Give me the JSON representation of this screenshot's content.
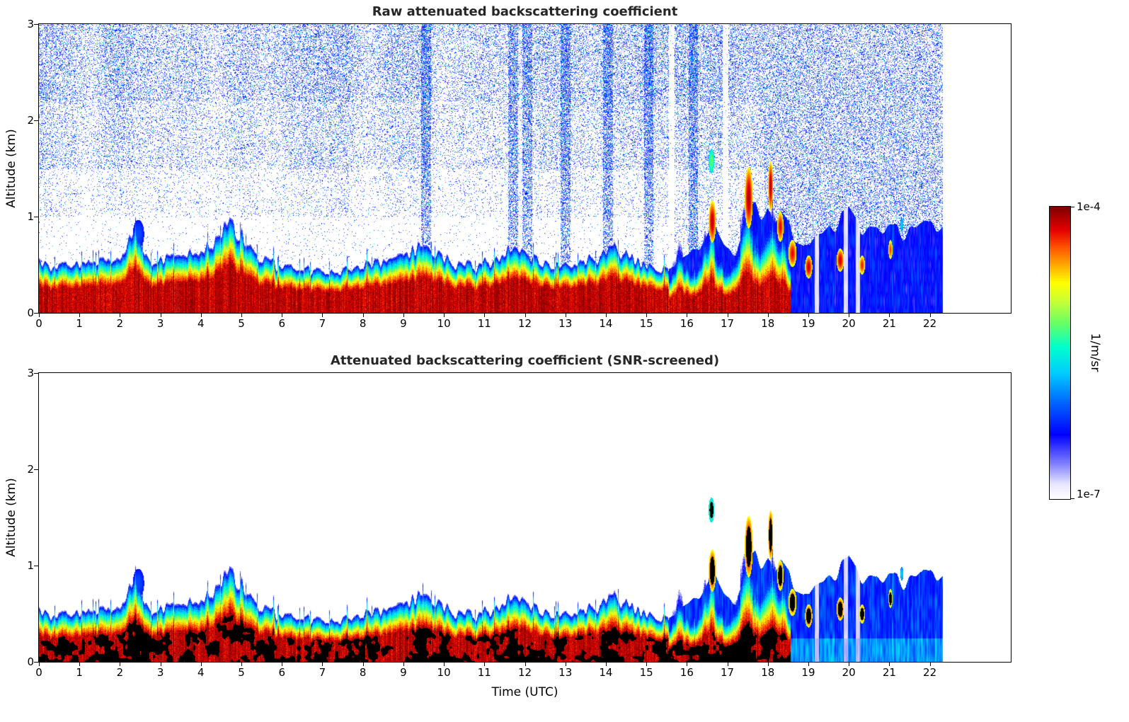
{
  "figure": {
    "background": "#ffffff",
    "colorbar": {
      "max_label": "1e-4",
      "min_label": "1e-7",
      "units_label": "1/m/sr",
      "scale": "log",
      "stops": [
        [
          0.0,
          "#ffffff"
        ],
        [
          0.05,
          "#e8e6ff"
        ],
        [
          0.12,
          "#7f7fff"
        ],
        [
          0.22,
          "#0000ff"
        ],
        [
          0.33,
          "#0066ff"
        ],
        [
          0.43,
          "#00ccff"
        ],
        [
          0.52,
          "#00ffcc"
        ],
        [
          0.6,
          "#66ff66"
        ],
        [
          0.68,
          "#ccff33"
        ],
        [
          0.74,
          "#ffff00"
        ],
        [
          0.8,
          "#ffaa00"
        ],
        [
          0.86,
          "#ff5500"
        ],
        [
          0.92,
          "#e60000"
        ],
        [
          1.0,
          "#800000"
        ]
      ]
    }
  },
  "chart_data": [
    {
      "type": "heatmap",
      "panel": "raw",
      "title": "Raw attenuated backscattering coefficient",
      "xlabel": "",
      "ylabel": "Altitude (km)",
      "xlim": [
        0,
        24
      ],
      "ylim": [
        0,
        3
      ],
      "xticks": [
        0,
        1,
        2,
        3,
        4,
        5,
        6,
        7,
        8,
        9,
        10,
        11,
        12,
        13,
        14,
        15,
        16,
        17,
        18,
        19,
        20,
        21,
        22
      ],
      "yticks": [
        0,
        1,
        2,
        3
      ],
      "time_extent_utc": [
        0,
        22.3
      ],
      "value_scale": {
        "min": 1e-07,
        "max": 0.0001,
        "units": "1/m/sr",
        "scale": "log"
      },
      "screened": false,
      "noise_speckle": true,
      "boundary_layer_top_km": {
        "t": [
          0.0,
          0.6,
          1.2,
          1.8,
          2.1,
          2.25,
          2.4,
          2.6,
          2.9,
          3.3,
          3.8,
          4.2,
          4.5,
          4.7,
          4.85,
          5.0,
          5.15,
          5.35,
          5.7,
          6.2,
          6.8,
          7.3,
          7.8,
          8.3,
          8.8,
          9.1,
          9.35,
          9.6,
          9.9,
          10.3,
          10.8,
          11.2,
          11.5,
          11.75,
          12.0,
          12.4,
          12.9,
          13.4,
          13.9,
          14.15,
          14.4,
          14.8,
          15.1,
          15.4,
          15.6,
          15.8,
          16.05,
          16.25,
          16.45,
          16.6,
          16.75,
          16.95,
          17.15,
          17.35,
          17.5,
          17.65,
          17.8,
          17.95,
          18.1,
          18.25,
          18.4,
          18.55
        ],
        "h": [
          0.52,
          0.5,
          0.52,
          0.55,
          0.62,
          0.78,
          0.88,
          0.6,
          0.55,
          0.58,
          0.62,
          0.7,
          0.82,
          0.92,
          0.88,
          0.82,
          0.72,
          0.6,
          0.52,
          0.48,
          0.45,
          0.44,
          0.48,
          0.52,
          0.54,
          0.6,
          0.68,
          0.66,
          0.58,
          0.52,
          0.5,
          0.55,
          0.62,
          0.7,
          0.62,
          0.54,
          0.5,
          0.52,
          0.62,
          0.7,
          0.62,
          0.54,
          0.5,
          0.46,
          0.42,
          0.7,
          0.5,
          0.55,
          0.8,
          1.0,
          0.65,
          0.55,
          0.6,
          0.9,
          1.3,
          0.9,
          0.7,
          0.9,
          1.15,
          0.8,
          0.9,
          0.6
        ]
      },
      "blue_field_top_km": {
        "t": [
          15.55,
          15.8,
          16.0,
          16.3,
          16.6,
          16.9,
          17.2,
          17.5,
          17.8,
          18.0,
          18.3,
          18.6,
          19.0,
          19.3,
          19.6,
          20.0,
          20.3,
          20.7,
          21.0,
          21.4,
          21.8,
          22.1,
          22.3
        ],
        "h": [
          0.45,
          0.55,
          0.6,
          0.65,
          0.9,
          0.7,
          0.65,
          1.0,
          1.05,
          1.1,
          0.95,
          0.8,
          0.75,
          0.85,
          0.9,
          1.0,
          0.8,
          0.85,
          0.9,
          0.8,
          0.9,
          0.95,
          0.9
        ]
      },
      "features": {
        "clouds": [
          [
            2.45,
            0.82,
            0.14,
            0.15,
            0.3,
            0
          ],
          [
            16.6,
            1.58,
            0.07,
            0.13,
            0.6,
            1
          ],
          [
            16.62,
            0.95,
            0.09,
            0.22,
            0.95,
            1
          ],
          [
            17.52,
            1.2,
            0.1,
            0.32,
            0.96,
            1
          ],
          [
            18.06,
            1.32,
            0.06,
            0.26,
            0.96,
            1
          ],
          [
            18.3,
            0.9,
            0.08,
            0.16,
            0.92,
            1
          ],
          [
            18.6,
            0.62,
            0.1,
            0.14,
            0.92,
            1
          ],
          [
            19.0,
            0.48,
            0.09,
            0.12,
            0.94,
            1
          ],
          [
            19.78,
            0.55,
            0.09,
            0.12,
            0.94,
            1
          ],
          [
            20.32,
            0.5,
            0.07,
            0.1,
            0.9,
            1
          ],
          [
            21.02,
            0.66,
            0.05,
            0.1,
            0.88,
            1
          ],
          [
            21.3,
            0.92,
            0.04,
            0.07,
            0.45,
            0
          ]
        ],
        "virga_columns_utc": [
          9.55,
          11.7,
          12.05,
          13.0,
          14.05,
          15.05,
          16.15
        ],
        "clear_gaps_utc": [
          15.62,
          16.95
        ],
        "pale_gaps_utc": [
          19.2,
          19.92,
          20.22
        ]
      }
    },
    {
      "type": "heatmap",
      "panel": "snr_screened",
      "title": "Attenuated backscattering coefficient (SNR-screened)",
      "xlabel": "Time (UTC)",
      "ylabel": "Altitude (km)",
      "xlim": [
        0,
        24
      ],
      "ylim": [
        0,
        3
      ],
      "xticks": [
        0,
        1,
        2,
        3,
        4,
        5,
        6,
        7,
        8,
        9,
        10,
        11,
        12,
        13,
        14,
        15,
        16,
        17,
        18,
        19,
        20,
        21,
        22
      ],
      "yticks": [
        0,
        1,
        2,
        3
      ],
      "time_extent_utc": [
        0,
        22.3
      ],
      "value_scale": {
        "min": 1e-07,
        "max": 0.0001,
        "units": "1/m/sr",
        "scale": "log"
      },
      "screened": true,
      "noise_speckle": false,
      "boundary_layer_top_km": {
        "t": [
          0.0,
          0.6,
          1.2,
          1.8,
          2.1,
          2.25,
          2.4,
          2.6,
          2.9,
          3.3,
          3.8,
          4.2,
          4.5,
          4.7,
          4.85,
          5.0,
          5.15,
          5.35,
          5.7,
          6.2,
          6.8,
          7.3,
          7.8,
          8.3,
          8.8,
          9.1,
          9.35,
          9.6,
          9.9,
          10.3,
          10.8,
          11.2,
          11.5,
          11.75,
          12.0,
          12.4,
          12.9,
          13.4,
          13.9,
          14.15,
          14.4,
          14.8,
          15.1,
          15.4,
          15.6,
          15.8,
          16.05,
          16.25,
          16.45,
          16.6,
          16.75,
          16.95,
          17.15,
          17.35,
          17.5,
          17.65,
          17.8,
          17.95,
          18.1,
          18.25,
          18.4,
          18.55
        ],
        "h": [
          0.52,
          0.5,
          0.52,
          0.55,
          0.62,
          0.78,
          0.88,
          0.6,
          0.55,
          0.58,
          0.62,
          0.7,
          0.82,
          0.92,
          0.88,
          0.82,
          0.72,
          0.6,
          0.52,
          0.48,
          0.45,
          0.44,
          0.48,
          0.52,
          0.54,
          0.6,
          0.68,
          0.66,
          0.58,
          0.52,
          0.5,
          0.55,
          0.62,
          0.7,
          0.62,
          0.54,
          0.5,
          0.52,
          0.62,
          0.7,
          0.62,
          0.54,
          0.5,
          0.46,
          0.42,
          0.7,
          0.5,
          0.55,
          0.8,
          1.0,
          0.65,
          0.55,
          0.6,
          0.9,
          1.3,
          0.9,
          0.7,
          0.9,
          1.15,
          0.8,
          0.9,
          0.6
        ]
      },
      "blue_field_top_km": {
        "t": [
          15.55,
          15.8,
          16.0,
          16.3,
          16.6,
          16.9,
          17.2,
          17.5,
          17.8,
          18.0,
          18.3,
          18.6,
          19.0,
          19.3,
          19.6,
          20.0,
          20.3,
          20.7,
          21.0,
          21.4,
          21.8,
          22.1,
          22.3
        ],
        "h": [
          0.45,
          0.55,
          0.6,
          0.65,
          0.9,
          0.7,
          0.65,
          1.0,
          1.05,
          1.1,
          0.95,
          0.8,
          0.75,
          0.85,
          0.9,
          1.0,
          0.8,
          0.85,
          0.9,
          0.8,
          0.9,
          0.95,
          0.9
        ]
      },
      "features": {
        "clouds": [
          [
            2.45,
            0.82,
            0.14,
            0.15,
            0.3,
            0
          ],
          [
            16.6,
            1.58,
            0.07,
            0.13,
            0.6,
            1
          ],
          [
            16.62,
            0.95,
            0.09,
            0.22,
            0.95,
            1
          ],
          [
            17.52,
            1.2,
            0.1,
            0.32,
            0.96,
            1
          ],
          [
            18.06,
            1.32,
            0.06,
            0.26,
            0.96,
            1
          ],
          [
            18.3,
            0.9,
            0.08,
            0.16,
            0.92,
            1
          ],
          [
            18.6,
            0.62,
            0.1,
            0.14,
            0.92,
            1
          ],
          [
            19.0,
            0.48,
            0.09,
            0.12,
            0.94,
            1
          ],
          [
            19.78,
            0.55,
            0.09,
            0.12,
            0.94,
            1
          ],
          [
            20.32,
            0.5,
            0.07,
            0.1,
            0.9,
            1
          ],
          [
            21.02,
            0.66,
            0.05,
            0.1,
            0.88,
            1
          ],
          [
            21.3,
            0.92,
            0.04,
            0.07,
            0.45,
            0
          ]
        ],
        "virga_columns_utc": [],
        "clear_gaps_utc": [],
        "pale_gaps_utc": [
          19.2,
          19.92,
          20.22
        ]
      }
    }
  ]
}
